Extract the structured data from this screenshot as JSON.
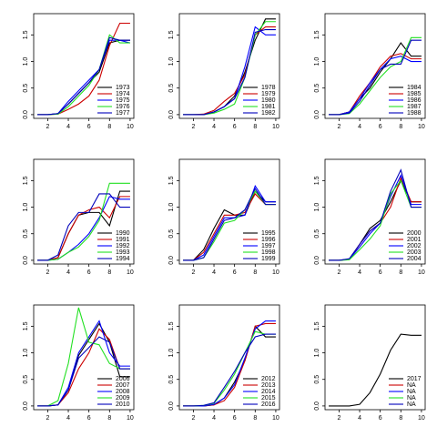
{
  "chart_data": [
    {
      "type": "line",
      "x": [
        1,
        2,
        3,
        4,
        5,
        6,
        7,
        8,
        9,
        10
      ],
      "xlim": [
        0.64,
        10.36
      ],
      "ylim": [
        -0.07,
        1.9
      ],
      "xticks": [
        2,
        4,
        6,
        8,
        10
      ],
      "yticks": [
        {
          "value": 0,
          "label": "0.0"
        },
        0.5,
        {
          "value": 1,
          "label": "1.0"
        },
        1.5
      ],
      "legend": "bottomright",
      "series": [
        {
          "name": "1973",
          "color": "#000000",
          "values": [
            0,
            0,
            0.02,
            0.2,
            0.4,
            0.6,
            0.8,
            1.35,
            1.4,
            1.4
          ]
        },
        {
          "name": "1974",
          "color": "#cc0000",
          "values": [
            0,
            0,
            0.01,
            0.1,
            0.2,
            0.35,
            0.65,
            1.3,
            1.72,
            1.72
          ]
        },
        {
          "name": "1975",
          "color": "#0000ff",
          "values": [
            0,
            0,
            0.02,
            0.25,
            0.45,
            0.65,
            0.85,
            1.4,
            1.4,
            1.35
          ]
        },
        {
          "name": "1976",
          "color": "#22e022",
          "values": [
            0,
            0,
            0.01,
            0.15,
            0.35,
            0.55,
            0.85,
            1.5,
            1.35,
            1.35
          ]
        },
        {
          "name": "1977",
          "color": "#0000bb",
          "values": [
            0,
            0,
            0.02,
            0.2,
            0.4,
            0.6,
            0.85,
            1.45,
            1.4,
            1.4
          ]
        }
      ]
    },
    {
      "type": "line",
      "x": [
        1,
        2,
        3,
        4,
        5,
        6,
        7,
        8,
        9,
        10
      ],
      "xlim": [
        0.64,
        10.36
      ],
      "ylim": [
        -0.07,
        1.9
      ],
      "xticks": [
        2,
        4,
        6,
        8,
        10
      ],
      "yticks": [
        {
          "value": 0,
          "label": "0.0"
        },
        0.5,
        {
          "value": 1,
          "label": "1.0"
        },
        1.5
      ],
      "legend": "bottomright",
      "series": [
        {
          "name": "1978",
          "color": "#000000",
          "values": [
            0,
            0,
            0,
            0.05,
            0.15,
            0.35,
            0.8,
            1.4,
            1.8,
            1.8
          ]
        },
        {
          "name": "1979",
          "color": "#cc0000",
          "values": [
            0,
            0,
            0.01,
            0.08,
            0.25,
            0.4,
            0.75,
            1.5,
            1.65,
            1.65
          ]
        },
        {
          "name": "1980",
          "color": "#0000ff",
          "values": [
            0,
            0,
            0,
            0.05,
            0.15,
            0.3,
            0.9,
            1.65,
            1.5,
            1.5
          ]
        },
        {
          "name": "1981",
          "color": "#22e022",
          "values": [
            0,
            0,
            0,
            0.03,
            0.1,
            0.2,
            0.7,
            1.5,
            1.75,
            1.75
          ]
        },
        {
          "name": "1982",
          "color": "#0000bb",
          "values": [
            0,
            0,
            0,
            0.05,
            0.15,
            0.3,
            0.7,
            1.55,
            1.6,
            1.6
          ]
        }
      ]
    },
    {
      "type": "line",
      "x": [
        1,
        2,
        3,
        4,
        5,
        6,
        7,
        8,
        9,
        10
      ],
      "xlim": [
        0.64,
        10.36
      ],
      "ylim": [
        -0.07,
        1.9
      ],
      "xticks": [
        2,
        4,
        6,
        8,
        10
      ],
      "yticks": [
        {
          "value": 0,
          "label": "0.0"
        },
        0.5,
        {
          "value": 1,
          "label": "1.0"
        },
        1.5
      ],
      "legend": "bottomright",
      "series": [
        {
          "name": "1984",
          "color": "#000000",
          "values": [
            0,
            0,
            0.05,
            0.3,
            0.5,
            0.8,
            1.05,
            1.35,
            1.1,
            1.1
          ]
        },
        {
          "name": "1985",
          "color": "#cc0000",
          "values": [
            0,
            0,
            0.05,
            0.35,
            0.6,
            0.9,
            1.1,
            1.15,
            1.05,
            1.05
          ]
        },
        {
          "name": "1986",
          "color": "#0000ff",
          "values": [
            0,
            0,
            0.05,
            0.3,
            0.6,
            0.85,
            1.05,
            1.1,
            1.0,
            1.0
          ]
        },
        {
          "name": "1987",
          "color": "#22e022",
          "values": [
            0,
            0,
            0.02,
            0.2,
            0.45,
            0.7,
            0.9,
            1.0,
            1.45,
            1.45
          ]
        },
        {
          "name": "1988",
          "color": "#0000bb",
          "values": [
            0,
            0,
            0.03,
            0.25,
            0.55,
            0.85,
            0.95,
            0.95,
            1.4,
            1.4
          ]
        }
      ]
    },
    {
      "type": "line",
      "x": [
        1,
        2,
        3,
        4,
        5,
        6,
        7,
        8,
        9,
        10
      ],
      "xlim": [
        0.64,
        10.36
      ],
      "ylim": [
        -0.07,
        1.9
      ],
      "xticks": [
        2,
        4,
        6,
        8,
        10
      ],
      "yticks": [
        {
          "value": 0,
          "label": "0.0"
        },
        0.5,
        {
          "value": 1,
          "label": "1.0"
        },
        1.5
      ],
      "legend": "bottomright",
      "series": [
        {
          "name": "1990",
          "color": "#000000",
          "values": [
            0,
            0,
            0.05,
            0.5,
            0.85,
            0.9,
            0.9,
            0.65,
            1.3,
            1.3
          ]
        },
        {
          "name": "1991",
          "color": "#cc0000",
          "values": [
            0,
            0,
            0.05,
            0.5,
            0.85,
            0.95,
            1.0,
            0.8,
            1.2,
            1.2
          ]
        },
        {
          "name": "1992",
          "color": "#0000ff",
          "values": [
            0,
            0,
            0.02,
            0.15,
            0.3,
            0.5,
            0.8,
            1.2,
            1.15,
            1.15
          ]
        },
        {
          "name": "1993",
          "color": "#22e022",
          "values": [
            0,
            0,
            0.02,
            0.15,
            0.25,
            0.45,
            0.75,
            1.45,
            1.45,
            1.45
          ]
        },
        {
          "name": "1994",
          "color": "#0000bb",
          "values": [
            0,
            0,
            0.1,
            0.65,
            0.9,
            0.9,
            1.25,
            1.25,
            1.0,
            1.0
          ]
        }
      ]
    },
    {
      "type": "line",
      "x": [
        1,
        2,
        3,
        4,
        5,
        6,
        7,
        8,
        9,
        10
      ],
      "xlim": [
        0.64,
        10.36
      ],
      "ylim": [
        -0.07,
        1.9
      ],
      "xticks": [
        2,
        4,
        6,
        8,
        10
      ],
      "yticks": [
        {
          "value": 0,
          "label": "0.0"
        },
        0.5,
        {
          "value": 1,
          "label": "1.0"
        },
        1.5
      ],
      "legend": "bottomright",
      "series": [
        {
          "name": "1995",
          "color": "#000000",
          "values": [
            0,
            0,
            0.2,
            0.6,
            0.95,
            0.85,
            0.85,
            1.3,
            1.1,
            1.1
          ]
        },
        {
          "name": "1996",
          "color": "#cc0000",
          "values": [
            0,
            0,
            0.15,
            0.5,
            0.85,
            0.85,
            0.9,
            1.25,
            1.05,
            1.05
          ]
        },
        {
          "name": "1997",
          "color": "#0000ff",
          "values": [
            0,
            0,
            0.1,
            0.45,
            0.8,
            0.8,
            0.85,
            1.4,
            1.1,
            1.1
          ]
        },
        {
          "name": "1998",
          "color": "#22e022",
          "values": [
            0,
            0,
            0.05,
            0.35,
            0.7,
            0.75,
            0.95,
            1.3,
            1.05,
            1.05
          ]
        },
        {
          "name": "1999",
          "color": "#0000bb",
          "values": [
            0,
            0,
            0.05,
            0.4,
            0.75,
            0.8,
            0.95,
            1.35,
            1.05,
            1.05
          ]
        }
      ]
    },
    {
      "type": "line",
      "x": [
        1,
        2,
        3,
        4,
        5,
        6,
        7,
        8,
        9,
        10
      ],
      "xlim": [
        0.64,
        10.36
      ],
      "ylim": [
        -0.07,
        1.9
      ],
      "xticks": [
        2,
        4,
        6,
        8,
        10
      ],
      "yticks": [
        {
          "value": 0,
          "label": "0.0"
        },
        0.5,
        {
          "value": 1,
          "label": "1.0"
        },
        1.5
      ],
      "legend": "bottomright",
      "series": [
        {
          "name": "2000",
          "color": "#000000",
          "values": [
            0,
            0,
            0.02,
            0.3,
            0.6,
            0.75,
            1.1,
            1.5,
            1.1,
            1.1
          ]
        },
        {
          "name": "2001",
          "color": "#cc0000",
          "values": [
            0,
            0,
            0.02,
            0.3,
            0.55,
            0.7,
            1.0,
            1.55,
            1.1,
            1.1
          ]
        },
        {
          "name": "2002",
          "color": "#0000ff",
          "values": [
            0,
            0,
            0.02,
            0.25,
            0.5,
            0.7,
            1.2,
            1.6,
            1.05,
            1.05
          ]
        },
        {
          "name": "2003",
          "color": "#22e022",
          "values": [
            0,
            0,
            0.01,
            0.2,
            0.4,
            0.65,
            1.25,
            1.5,
            1.0,
            1.0
          ]
        },
        {
          "name": "2004",
          "color": "#0000bb",
          "values": [
            0,
            0,
            0.03,
            0.3,
            0.55,
            0.7,
            1.3,
            1.7,
            1.0,
            1.0
          ]
        }
      ]
    },
    {
      "type": "line",
      "x": [
        1,
        2,
        3,
        4,
        5,
        6,
        7,
        8,
        9,
        10
      ],
      "xlim": [
        0.64,
        10.36
      ],
      "ylim": [
        -0.07,
        1.9
      ],
      "xticks": [
        2,
        4,
        6,
        8,
        10
      ],
      "yticks": [
        {
          "value": 0,
          "label": "0.0"
        },
        0.5,
        {
          "value": 1,
          "label": "1.0"
        },
        1.5
      ],
      "legend": "bottomright",
      "series": [
        {
          "name": "2006",
          "color": "#000000",
          "values": [
            0,
            0,
            0.02,
            0.3,
            0.95,
            1.25,
            1.55,
            1.2,
            0.55,
            0.55
          ]
        },
        {
          "name": "2007",
          "color": "#cc0000",
          "values": [
            0,
            0,
            0.02,
            0.25,
            0.7,
            1.0,
            1.45,
            1.25,
            0.7,
            0.7
          ]
        },
        {
          "name": "2008",
          "color": "#0000ff",
          "values": [
            0,
            0,
            0.02,
            0.35,
            1.0,
            1.3,
            1.6,
            1.0,
            0.75,
            0.75
          ]
        },
        {
          "name": "2009",
          "color": "#22e022",
          "values": [
            0,
            0,
            0.1,
            0.8,
            1.85,
            1.2,
            1.15,
            0.8,
            0.7,
            0.7
          ]
        },
        {
          "name": "2010",
          "color": "#0000bb",
          "values": [
            0,
            0,
            0.02,
            0.3,
            0.9,
            1.1,
            1.3,
            1.2,
            0.7,
            0.7
          ]
        }
      ]
    },
    {
      "type": "line",
      "x": [
        1,
        2,
        3,
        4,
        5,
        6,
        7,
        8,
        9,
        10
      ],
      "xlim": [
        0.64,
        10.36
      ],
      "ylim": [
        -0.07,
        1.9
      ],
      "xticks": [
        2,
        4,
        6,
        8,
        10
      ],
      "yticks": [
        {
          "value": 0,
          "label": "0.0"
        },
        0.5,
        {
          "value": 1,
          "label": "1.0"
        },
        1.5
      ],
      "legend": "bottomright",
      "series": [
        {
          "name": "2012",
          "color": "#000000",
          "values": [
            0,
            0,
            0,
            0.02,
            0.15,
            0.45,
            0.85,
            1.5,
            1.3,
            1.3
          ]
        },
        {
          "name": "2013",
          "color": "#cc0000",
          "values": [
            0,
            0,
            0,
            0.02,
            0.1,
            0.35,
            0.85,
            1.5,
            1.55,
            1.55
          ]
        },
        {
          "name": "2014",
          "color": "#0000ff",
          "values": [
            0,
            0,
            0,
            0.03,
            0.15,
            0.4,
            0.9,
            1.45,
            1.6,
            1.6
          ]
        },
        {
          "name": "2015",
          "color": "#22e022",
          "values": [
            0,
            0,
            0.01,
            0.05,
            0.3,
            0.6,
            1.0,
            1.4,
            1.35,
            1.35
          ]
        },
        {
          "name": "2016",
          "color": "#0000bb",
          "values": [
            0,
            0,
            0.01,
            0.06,
            0.35,
            0.65,
            1.0,
            1.3,
            1.35,
            1.35
          ]
        }
      ]
    },
    {
      "type": "line",
      "x": [
        1,
        2,
        3,
        4,
        5,
        6,
        7,
        8,
        9,
        10
      ],
      "xlim": [
        0.64,
        10.36
      ],
      "ylim": [
        -0.07,
        1.9
      ],
      "xticks": [
        2,
        4,
        6,
        8,
        10
      ],
      "yticks": [
        {
          "value": 0,
          "label": "0.0"
        },
        0.5,
        {
          "value": 1,
          "label": "1.0"
        },
        1.5
      ],
      "legend": "bottomright",
      "series": [
        {
          "name": "2017",
          "color": "#000000",
          "values": [
            0,
            0,
            0,
            0.03,
            0.25,
            0.6,
            1.05,
            1.35,
            1.33,
            1.33
          ]
        },
        {
          "name": "NA",
          "color": "#cc0000",
          "values": [
            null,
            null,
            null,
            null,
            null,
            null,
            null,
            null,
            null,
            null
          ]
        },
        {
          "name": "NA",
          "color": "#0000ff",
          "values": [
            null,
            null,
            null,
            null,
            null,
            null,
            null,
            null,
            null,
            null
          ]
        },
        {
          "name": "NA",
          "color": "#22e022",
          "values": [
            null,
            null,
            null,
            null,
            null,
            null,
            null,
            null,
            null,
            null
          ]
        },
        {
          "name": "NA",
          "color": "#0000bb",
          "values": [
            null,
            null,
            null,
            null,
            null,
            null,
            null,
            null,
            null,
            null
          ]
        }
      ]
    }
  ]
}
